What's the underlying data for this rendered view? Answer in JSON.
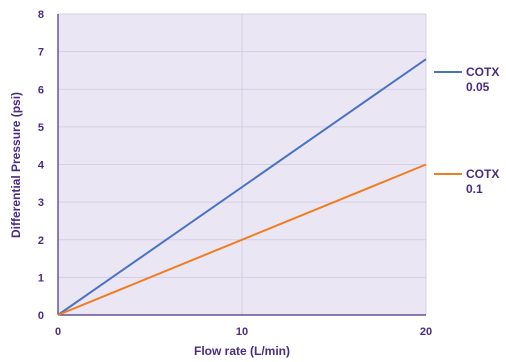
{
  "chart_data": {
    "type": "line",
    "xlabel": "Flow rate (L/min)",
    "ylabel": "Differential Pressure (psi)",
    "xlim": [
      0,
      20
    ],
    "ylim": [
      0,
      8
    ],
    "x_ticks": [
      0,
      10,
      20
    ],
    "y_ticks": [
      0,
      1,
      2,
      3,
      4,
      5,
      6,
      7,
      8
    ],
    "grid": true,
    "legend_position": "right",
    "plot_background": "#ebe6f4",
    "series": [
      {
        "name_line1": "COTX",
        "name_line2": "0.05",
        "color": "#4a72c4",
        "x": [
          0,
          20
        ],
        "y": [
          0,
          6.8
        ]
      },
      {
        "name_line1": "COTX",
        "name_line2": "0.1",
        "color": "#ef7d22",
        "x": [
          0,
          20
        ],
        "y": [
          0,
          4.0
        ]
      }
    ]
  }
}
